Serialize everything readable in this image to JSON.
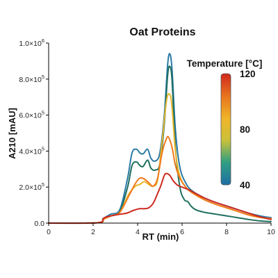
{
  "chart_data": {
    "type": "line",
    "title": "Oat Proteins",
    "xlabel": "RT (min)",
    "ylabel": "A210 [mAU]",
    "xlim": [
      0,
      10
    ],
    "ylim": [
      0,
      1000000
    ],
    "x_ticks": [
      0,
      2,
      4,
      6,
      8,
      10
    ],
    "y_ticks": [
      {
        "value": 0,
        "label": "0.0"
      },
      {
        "value": 200000,
        "mant": "2.0×10",
        "exp": "5"
      },
      {
        "value": 400000,
        "mant": "4.0×10",
        "exp": "5"
      },
      {
        "value": 600000,
        "mant": "6.0×10",
        "exp": "5"
      },
      {
        "value": 800000,
        "mant": "8.0×10",
        "exp": "5"
      },
      {
        "value": 1000000,
        "mant": "1.0×10",
        "exp": "6"
      }
    ],
    "colorbar": {
      "title": "Temperature [°C]",
      "range": [
        40,
        120
      ],
      "ticks": [
        40,
        80,
        120
      ],
      "colors": [
        "#1d6fa4",
        "#2f9e82",
        "#c9c13a",
        "#f0b429",
        "#e8741f",
        "#d0281c"
      ]
    },
    "series": [
      {
        "temperature": 40,
        "color": "#2b7aa6",
        "x": [
          0,
          2.2,
          2.45,
          2.8,
          3.2,
          3.55,
          3.75,
          3.95,
          4.1,
          4.25,
          4.45,
          4.6,
          4.8,
          5.0,
          5.2,
          5.35,
          5.45,
          5.55,
          5.7,
          5.9,
          6.2,
          6.5,
          7.0,
          7.5,
          8.0,
          8.5,
          9.0,
          9.5,
          10
        ],
        "y": [
          0,
          2000,
          25000,
          50000,
          75000,
          250000,
          390000,
          410000,
          390000,
          385000,
          410000,
          360000,
          345000,
          390000,
          600000,
          880000,
          940000,
          850000,
          520000,
          310000,
          215000,
          175000,
          140000,
          115000,
          95000,
          75000,
          55000,
          40000,
          30000
        ]
      },
      {
        "temperature": 60,
        "color": "#1e6e5e",
        "x": [
          0,
          2.2,
          2.45,
          2.8,
          3.2,
          3.55,
          3.75,
          3.95,
          4.1,
          4.25,
          4.45,
          4.6,
          4.8,
          5.0,
          5.2,
          5.35,
          5.45,
          5.55,
          5.7,
          5.9,
          6.1,
          6.25,
          6.4,
          6.6,
          7.0,
          7.5,
          8.0,
          8.5,
          9.0,
          9.5,
          10
        ],
        "y": [
          0,
          2000,
          22000,
          40000,
          65000,
          200000,
          320000,
          340000,
          320000,
          315000,
          350000,
          305000,
          295000,
          330000,
          550000,
          820000,
          870000,
          790000,
          420000,
          200000,
          130000,
          120000,
          95000,
          75000,
          60000,
          50000,
          40000,
          30000,
          20000,
          12000,
          8000
        ]
      },
      {
        "temperature": 80,
        "color": "#e9b72b",
        "x": [
          0,
          2.2,
          2.45,
          2.8,
          3.2,
          3.6,
          3.9,
          4.1,
          4.3,
          4.5,
          4.7,
          4.9,
          5.1,
          5.3,
          5.45,
          5.55,
          5.7,
          5.9,
          6.2,
          6.5,
          7.0,
          7.5,
          8.0,
          8.5,
          9.0,
          9.5,
          10
        ],
        "y": [
          0,
          2000,
          20000,
          40000,
          60000,
          160000,
          205000,
          215000,
          230000,
          215000,
          205000,
          240000,
          450000,
          680000,
          715000,
          640000,
          400000,
          260000,
          195000,
          165000,
          130000,
          105000,
          85000,
          65000,
          45000,
          32000,
          25000
        ]
      },
      {
        "temperature": 100,
        "color": "#f07a1c",
        "x": [
          0,
          2.2,
          2.45,
          2.8,
          3.2,
          3.6,
          3.9,
          4.1,
          4.3,
          4.5,
          4.7,
          4.9,
          5.1,
          5.3,
          5.4,
          5.55,
          5.7,
          5.9,
          6.2,
          6.5,
          7.0,
          7.5,
          8.0,
          8.5,
          9.0,
          9.5,
          10
        ],
        "y": [
          0,
          2000,
          20000,
          40000,
          60000,
          150000,
          220000,
          250000,
          245000,
          225000,
          205000,
          250000,
          390000,
          470000,
          475000,
          420000,
          320000,
          250000,
          195000,
          165000,
          130000,
          105000,
          85000,
          65000,
          45000,
          32000,
          25000
        ]
      },
      {
        "temperature": 120,
        "color": "#cc2a1f",
        "x": [
          0,
          2.2,
          2.5,
          3.0,
          3.5,
          3.8,
          4.1,
          4.3,
          4.5,
          4.7,
          4.9,
          5.05,
          5.2,
          5.3,
          5.45,
          5.6,
          5.8,
          6.0,
          6.3,
          6.6,
          7.0,
          7.5,
          8.0,
          8.5,
          9.0,
          9.5,
          10
        ],
        "y": [
          0,
          2000,
          30000,
          45000,
          55000,
          70000,
          80000,
          80000,
          85000,
          110000,
          165000,
          210000,
          265000,
          275000,
          265000,
          235000,
          210000,
          200000,
          185000,
          165000,
          140000,
          115000,
          95000,
          75000,
          55000,
          35000,
          20000
        ]
      }
    ]
  }
}
